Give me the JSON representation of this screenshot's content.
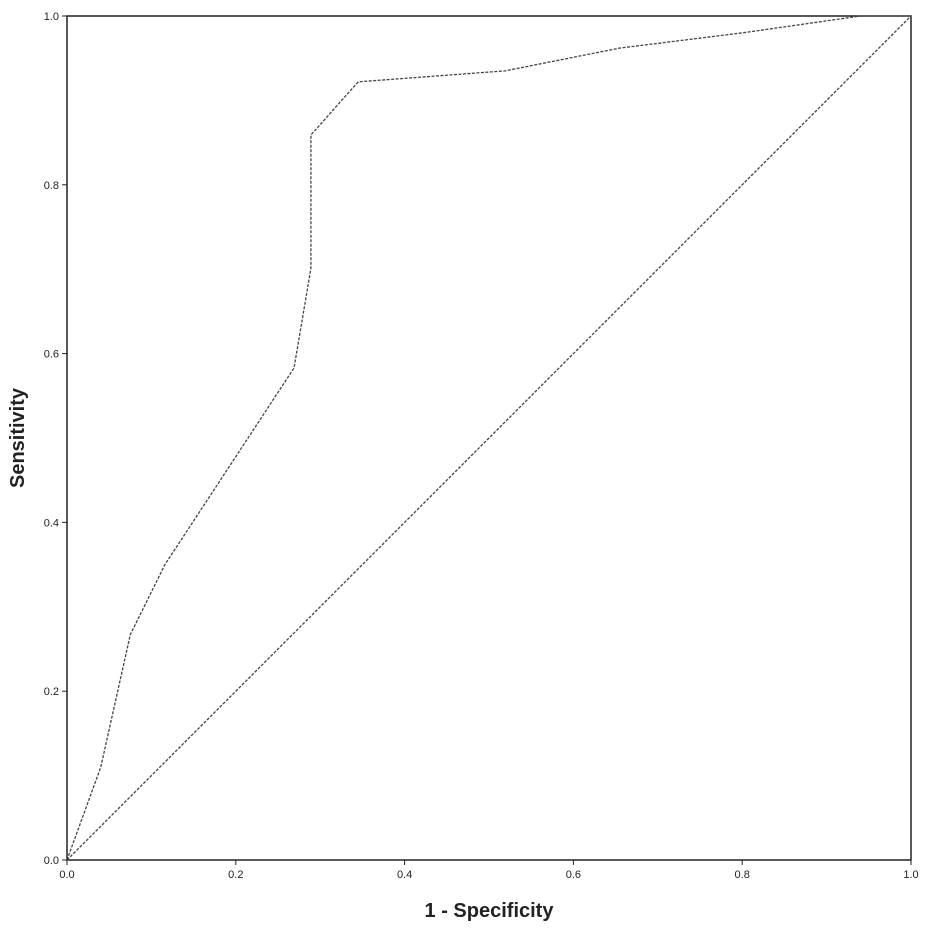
{
  "chart_data": {
    "type": "line",
    "x_label": "1 - Specificity",
    "y_label": "Sensitivity",
    "xlim": [
      0,
      1
    ],
    "ylim": [
      0,
      1
    ],
    "xticks": [
      {
        "value": 0,
        "label": "0.0"
      },
      0.2,
      0.4,
      0.6,
      0.8,
      {
        "value": 1,
        "label": "1.0"
      }
    ],
    "yticks": [
      {
        "value": 0,
        "label": "0.0"
      },
      0.2,
      0.4,
      0.6,
      0.8,
      {
        "value": 1,
        "label": "1.0"
      }
    ],
    "series": [
      {
        "color": "#444444",
        "dashed": true,
        "x": [
          0,
          0.04,
          0.075,
          0.116,
          0.269,
          0.289,
          0.289,
          0.345,
          0.519,
          0.655,
          0.8,
          0.94,
          1
        ],
        "values": [
          0,
          0.11,
          0.267,
          0.35,
          0.583,
          0.701,
          0.859,
          0.922,
          0.935,
          0.962,
          0.98,
          1,
          1
        ]
      },
      {
        "color": "#444444",
        "dashed": true,
        "x": [
          0,
          1
        ],
        "values": [
          0,
          1
        ]
      }
    ]
  }
}
